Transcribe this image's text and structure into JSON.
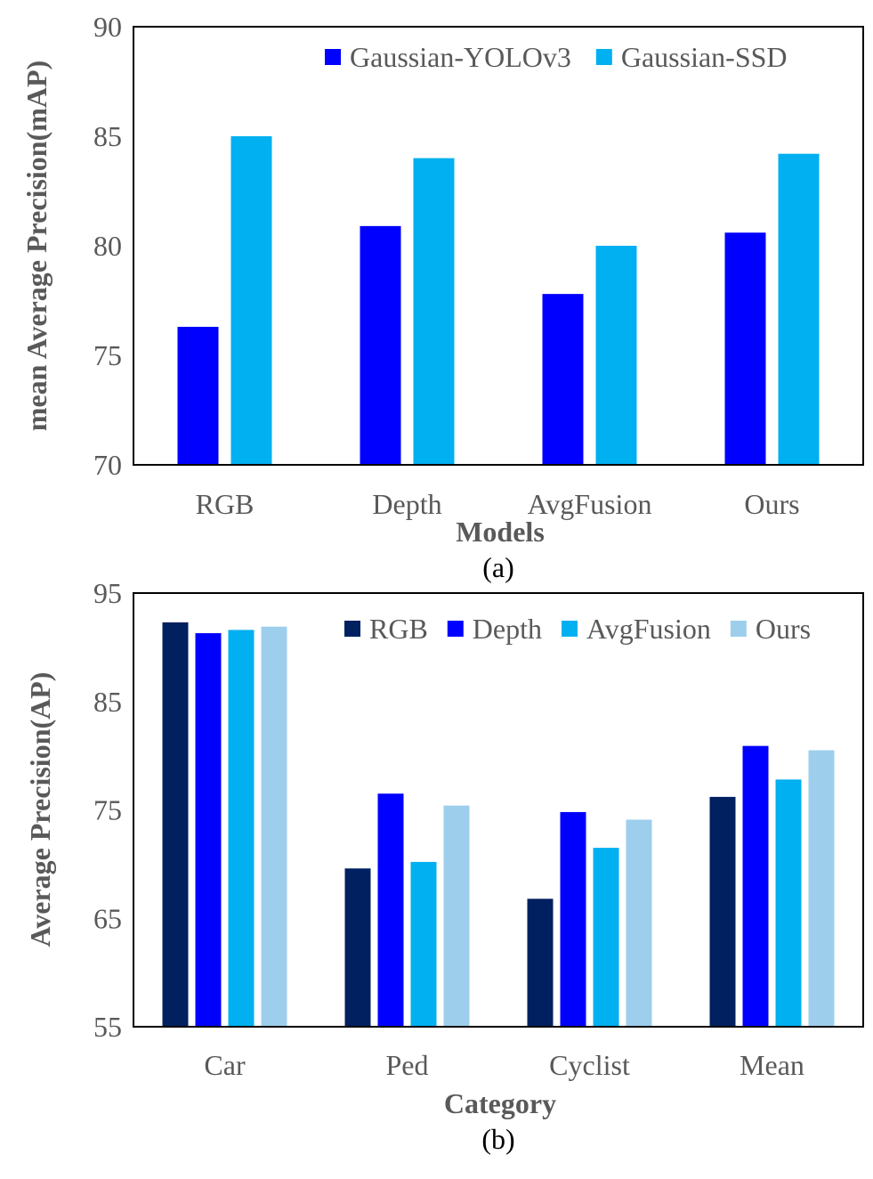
{
  "colors": {
    "RGB": "#002060",
    "Depth": "#0000ff",
    "AvgFusion": "#00b0f0",
    "Ours": "#9dcfec",
    "Gaussian-YOLOv3": "#0000ff",
    "Gaussian-SSD": "#00b0f0"
  },
  "chart_data": [
    {
      "type": "bar",
      "caption": "(a)",
      "title": "",
      "xlabel": "Models",
      "ylabel": "mean Average Precision(mAP)",
      "categories": [
        "RGB",
        "Depth",
        "AvgFusion",
        "Ours"
      ],
      "ylim": [
        70,
        90
      ],
      "yticks": [
        70,
        75,
        80,
        85,
        90
      ],
      "legend_position": "top-right",
      "series": [
        {
          "name": "Gaussian-YOLOv3",
          "values": [
            76.3,
            80.9,
            77.8,
            80.6
          ]
        },
        {
          "name": "Gaussian-SSD",
          "values": [
            85.0,
            84.0,
            80.0,
            84.2
          ]
        }
      ]
    },
    {
      "type": "bar",
      "caption": "(b)",
      "title": "",
      "xlabel": "Category",
      "ylabel": "Average Precision(AP)",
      "categories": [
        "Car",
        "Ped",
        "Cyclist",
        "Mean"
      ],
      "ylim": [
        55,
        95
      ],
      "yticks": [
        55,
        65,
        75,
        85,
        95
      ],
      "legend_position": "top-right",
      "series": [
        {
          "name": "RGB",
          "values": [
            92.3,
            69.6,
            66.8,
            76.2
          ]
        },
        {
          "name": "Depth",
          "values": [
            91.3,
            76.5,
            74.8,
            80.9
          ]
        },
        {
          "name": "AvgFusion",
          "values": [
            91.6,
            70.2,
            71.5,
            77.8
          ]
        },
        {
          "name": "Ours",
          "values": [
            91.9,
            75.4,
            74.1,
            80.5
          ]
        }
      ]
    }
  ]
}
